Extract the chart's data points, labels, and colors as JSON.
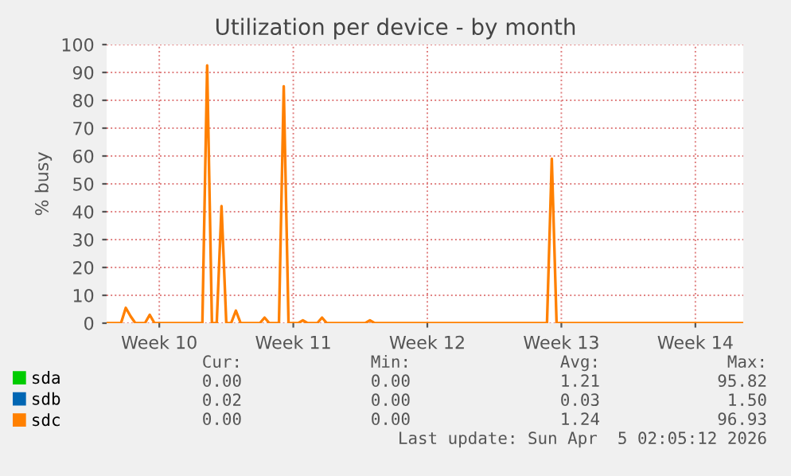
{
  "chart_data": {
    "type": "line",
    "title": "Utilization per device - by month",
    "ylabel": "% busy",
    "categories": [
      null,
      null,
      null,
      null,
      null,
      null,
      null,
      null,
      null,
      null,
      null,
      "Week 10",
      null,
      null,
      null,
      null,
      null,
      null,
      null,
      null,
      null,
      null,
      null,
      null,
      null,
      null,
      null,
      null,
      null,
      null,
      null,
      null,
      null,
      null,
      null,
      null,
      null,
      null,
      null,
      "Week 11",
      null,
      null,
      null,
      null,
      null,
      null,
      null,
      null,
      null,
      null,
      null,
      null,
      null,
      null,
      null,
      null,
      null,
      null,
      null,
      null,
      null,
      null,
      null,
      null,
      null,
      null,
      null,
      "Week 12",
      null,
      null,
      null,
      null,
      null,
      null,
      null,
      null,
      null,
      null,
      null,
      null,
      null,
      null,
      null,
      null,
      null,
      null,
      null,
      null,
      null,
      null,
      null,
      null,
      null,
      null,
      null,
      "Week 13",
      null,
      null,
      null,
      null,
      null,
      null,
      null,
      null,
      null,
      null,
      null,
      null,
      null,
      null,
      null,
      null,
      null,
      null,
      null,
      null,
      null,
      null,
      null,
      null,
      null,
      null,
      null,
      "Week 14",
      null,
      null,
      null,
      null,
      null,
      null,
      null,
      null,
      null,
      null
    ],
    "series": [
      {
        "name": "sda",
        "color": "#00cc00",
        "values": [
          null,
          null,
          null,
          null,
          null,
          null,
          null,
          null,
          null,
          null,
          null,
          null,
          null,
          null,
          null,
          null,
          null,
          null,
          null,
          null,
          null,
          null,
          null,
          null,
          null,
          null,
          null,
          null,
          null,
          null,
          null,
          null,
          null,
          null,
          null,
          null,
          null,
          null,
          null,
          null,
          null,
          null,
          null,
          null,
          null,
          null,
          null,
          null,
          null,
          null,
          null,
          null,
          null,
          null,
          null,
          null,
          null,
          null,
          null,
          null,
          null,
          null,
          null,
          null,
          null,
          null,
          null,
          null,
          null,
          null,
          null,
          null,
          null,
          null,
          null,
          null,
          null,
          null,
          null,
          null,
          null,
          null,
          null,
          null,
          null,
          null,
          null,
          null,
          null,
          null,
          null,
          null,
          null,
          null,
          null,
          null,
          null,
          null,
          null,
          null,
          null,
          null,
          null,
          null,
          null,
          null,
          null,
          null,
          null,
          null,
          null,
          null,
          null,
          null,
          null,
          null,
          null,
          null,
          null,
          null,
          null,
          null,
          null,
          null,
          null,
          null,
          null,
          null,
          null,
          null,
          null,
          null,
          null,
          null
        ]
      },
      {
        "name": "sdb",
        "color": "#0066b3",
        "values": [
          null,
          null,
          null,
          null,
          null,
          null,
          null,
          null,
          null,
          null,
          null,
          null,
          null,
          null,
          null,
          null,
          null,
          null,
          null,
          null,
          null,
          null,
          null,
          null,
          null,
          null,
          null,
          null,
          null,
          null,
          null,
          null,
          null,
          null,
          null,
          null,
          null,
          null,
          null,
          null,
          null,
          null,
          null,
          null,
          null,
          null,
          null,
          null,
          null,
          null,
          null,
          null,
          null,
          null,
          null,
          null,
          null,
          null,
          null,
          null,
          null,
          null,
          null,
          null,
          null,
          null,
          null,
          null,
          null,
          null,
          null,
          null,
          null,
          null,
          null,
          null,
          null,
          null,
          null,
          null,
          null,
          null,
          null,
          null,
          null,
          null,
          null,
          null,
          null,
          null,
          null,
          null,
          null,
          null,
          null,
          null,
          null,
          null,
          null,
          null,
          null,
          null,
          null,
          null,
          null,
          null,
          null,
          null,
          null,
          null,
          null,
          null,
          null,
          null,
          null,
          null,
          null,
          null,
          null,
          null,
          null,
          null,
          null,
          null,
          null,
          null,
          null,
          null,
          null,
          null,
          null,
          null,
          null,
          null
        ]
      },
      {
        "name": "sdc",
        "color": "#ff8000",
        "values": [
          0,
          0,
          0,
          0,
          5.5,
          2.5,
          0,
          0,
          0,
          3,
          0,
          0,
          0,
          0,
          0,
          0,
          0,
          0,
          0,
          0,
          0,
          92.5,
          0,
          0,
          42,
          0,
          0,
          4.5,
          0,
          0,
          0,
          0,
          0,
          2,
          0,
          0,
          0,
          85,
          0,
          0,
          0,
          1,
          0,
          0,
          0,
          2,
          0,
          0,
          0,
          0,
          0,
          0,
          0,
          0,
          0,
          1,
          0,
          0,
          0,
          0,
          0,
          0,
          0,
          0,
          0,
          0,
          0,
          0,
          0,
          0,
          0,
          0,
          0,
          0,
          0,
          0,
          0,
          0,
          0,
          0,
          0,
          0,
          0,
          0,
          0,
          0,
          0,
          0,
          0,
          0,
          0,
          0,
          0,
          59,
          0,
          0,
          0,
          0,
          0,
          0,
          0,
          0,
          0,
          0,
          0,
          0,
          0,
          0,
          0,
          0,
          0,
          0,
          0,
          0,
          0,
          0,
          0,
          0,
          0,
          0,
          0,
          0,
          0,
          0,
          0,
          0,
          0,
          0,
          0,
          0,
          0,
          0,
          0,
          0
        ]
      }
    ],
    "ylim": [
      0,
      100
    ],
    "yticks": [
      0,
      10,
      20,
      30,
      40,
      50,
      60,
      70,
      80,
      90,
      100
    ],
    "grid": true,
    "legend": "bottom left",
    "marker": "none",
    "line_style": "solid",
    "annotations": [
      "Cur:",
      "Min:",
      "Avg:",
      "Max:",
      "0.00",
      "0.00",
      "1.21",
      "95.82",
      "0.02",
      "0.00",
      "0.03",
      "1.50",
      "0.00",
      "0.00",
      "1.24",
      "96.93",
      "Last update: Sun Apr  5 02:05:12 2026"
    ]
  }
}
